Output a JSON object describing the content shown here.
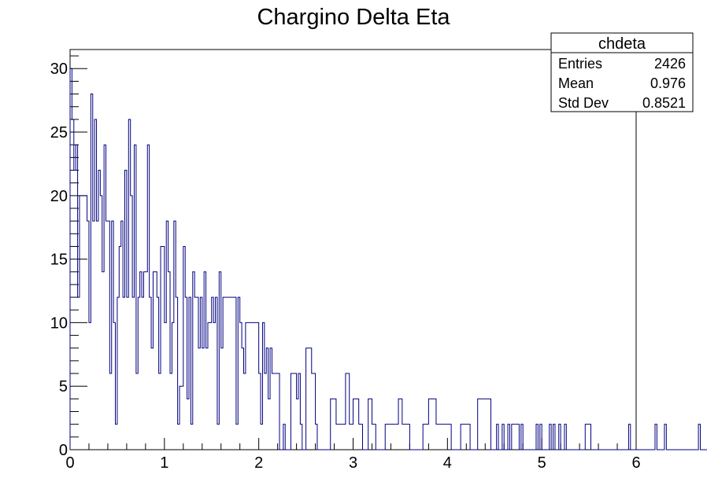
{
  "chart_data": {
    "type": "bar",
    "style": "step-histogram",
    "title": "Chargino Delta Eta",
    "xlabel": "",
    "ylabel": "",
    "xlim": [
      0,
      6
    ],
    "ylim": [
      0,
      31.5
    ],
    "bin_width": 0.02,
    "x_ticks": [
      "0",
      "1",
      "2",
      "3",
      "4",
      "5",
      "6"
    ],
    "y_ticks": [
      "0",
      "5",
      "10",
      "15",
      "20",
      "25",
      "30"
    ],
    "values": [
      30,
      26,
      22,
      24,
      12,
      20,
      20,
      20,
      20,
      18,
      10,
      28,
      18,
      26,
      18,
      22,
      20,
      14,
      24,
      18,
      18,
      6,
      18,
      10,
      2,
      12,
      16,
      18,
      12,
      22,
      12,
      26,
      20,
      12,
      24,
      6,
      12,
      14,
      12,
      14,
      14,
      24,
      12,
      8,
      14,
      14,
      12,
      6,
      16,
      16,
      10,
      18,
      14,
      6,
      10,
      18,
      12,
      2,
      5,
      5,
      16,
      12,
      4,
      12,
      2,
      14,
      12,
      12,
      8,
      12,
      8,
      14,
      8,
      10,
      10,
      12,
      10,
      12,
      2,
      14,
      8,
      12,
      12,
      12,
      12,
      12,
      12,
      12,
      2,
      12,
      10,
      8,
      6,
      10,
      10,
      10,
      10,
      10,
      10,
      10,
      6,
      2,
      10,
      6,
      8,
      4,
      8,
      6,
      6,
      6,
      6,
      0,
      0,
      2,
      0,
      0,
      0,
      6,
      6,
      6,
      4,
      6,
      2,
      0,
      0,
      8,
      8,
      8,
      6,
      6,
      2,
      0,
      0,
      0,
      0,
      0,
      0,
      0,
      4,
      4,
      4,
      2,
      2,
      2,
      2,
      2,
      6,
      6,
      2,
      2,
      4,
      4,
      4,
      2,
      2,
      0,
      0,
      0,
      4,
      4,
      2,
      2,
      0,
      0,
      0,
      0,
      0,
      2,
      2,
      2,
      2,
      2,
      2,
      2,
      4,
      4,
      2,
      2,
      2,
      2,
      0,
      0,
      0,
      0,
      0,
      0,
      0,
      2,
      2,
      2,
      4,
      4,
      4,
      4,
      2,
      2,
      2,
      2,
      2,
      2,
      2,
      2,
      0,
      0,
      0,
      0,
      0,
      2,
      2,
      2,
      2,
      2,
      0,
      0,
      0,
      0,
      4,
      4,
      4,
      4,
      4,
      4,
      4,
      0,
      0,
      0,
      2,
      0,
      0,
      2,
      0,
      0,
      2,
      0,
      2,
      2,
      2,
      2,
      0,
      2,
      0,
      0,
      0,
      0,
      0,
      0,
      0,
      2,
      0,
      2,
      0,
      0,
      0,
      0,
      2,
      0,
      2,
      0,
      0,
      2,
      0,
      0,
      2,
      0,
      0,
      0,
      0,
      0,
      0,
      0,
      0,
      0,
      0,
      2,
      2,
      2,
      0,
      0,
      0,
      0,
      0,
      0,
      0,
      0,
      0,
      0,
      0,
      0,
      0,
      0,
      0,
      0,
      0,
      0,
      0,
      0,
      2,
      0,
      0,
      0,
      0,
      0,
      0,
      0,
      0,
      0,
      0,
      0,
      0,
      0,
      2,
      0,
      0,
      0,
      0,
      2,
      0,
      0,
      0,
      0,
      0,
      0,
      0,
      0,
      0,
      0,
      0,
      0,
      0,
      0,
      0,
      0,
      0,
      2,
      0,
      0,
      0,
      0,
      0,
      0,
      0,
      0,
      0,
      0,
      0,
      0,
      0,
      0,
      0,
      0,
      0,
      0,
      0,
      0,
      0,
      0,
      0,
      0,
      0,
      0,
      0,
      0,
      0,
      0,
      0,
      0,
      0,
      0,
      0,
      0,
      0,
      0,
      0,
      0,
      0,
      0,
      0,
      0,
      0,
      0,
      0,
      0,
      0,
      0,
      0,
      0,
      0,
      0,
      0,
      0,
      0,
      0,
      0,
      0,
      0,
      0,
      0,
      0,
      0,
      0,
      0,
      0,
      0,
      0,
      0,
      0,
      0,
      0,
      0,
      0,
      0,
      0,
      0,
      0,
      0,
      0,
      0,
      0,
      0,
      0,
      0,
      0,
      0,
      0,
      0,
      0,
      0,
      0,
      0,
      0,
      0,
      0,
      0,
      0,
      0,
      0,
      0,
      0,
      0,
      0,
      0,
      0,
      0,
      0,
      0,
      0,
      0,
      0,
      0,
      0,
      0,
      0,
      0,
      0,
      0,
      0,
      0,
      0,
      0
    ],
    "line_color": "#000080",
    "grid": false,
    "stats_box": {
      "name": "chdeta",
      "rows": [
        {
          "label": "Entries",
          "value": "2426"
        },
        {
          "label": "Mean",
          "value": "0.976"
        },
        {
          "label": "Std Dev",
          "value": "0.8521"
        }
      ],
      "position": "top-right"
    }
  }
}
